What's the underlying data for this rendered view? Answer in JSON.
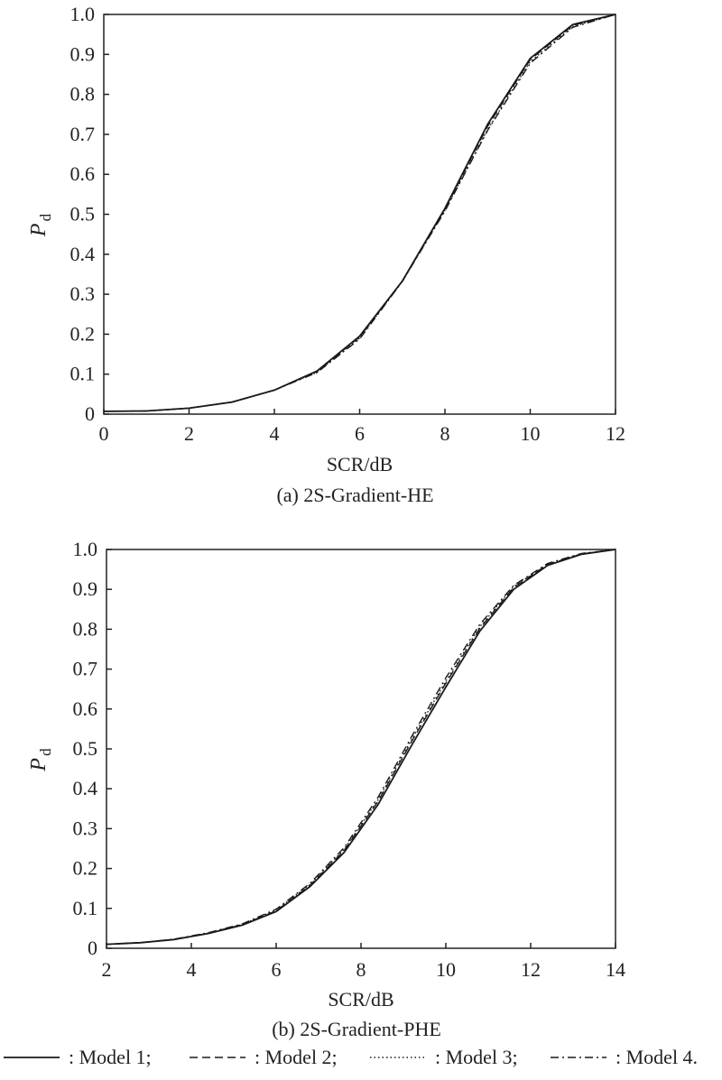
{
  "chart_data": [
    {
      "type": "line",
      "caption": "(a) 2S-Gradient-HE",
      "xlabel": "SCR/dB",
      "ylabel": "P",
      "ylabel_sub": "d",
      "xlim": [
        0,
        12
      ],
      "ylim": [
        0,
        1.0
      ],
      "xticks": [
        "0",
        "2",
        "4",
        "6",
        "8",
        "10",
        "12"
      ],
      "yticks": [
        "0",
        "0.1",
        "0.2",
        "0.3",
        "0.4",
        "0.5",
        "0.6",
        "0.7",
        "0.8",
        "0.9",
        "1.0"
      ],
      "grid": false,
      "series": [
        {
          "name": "Model 1",
          "style": "solid",
          "x": [
            0,
            1,
            2,
            3,
            4,
            5,
            6,
            7,
            8,
            9,
            10,
            11,
            12
          ],
          "y": [
            0.007,
            0.008,
            0.015,
            0.03,
            0.06,
            0.108,
            0.195,
            0.333,
            0.515,
            0.725,
            0.89,
            0.975,
            1.0
          ]
        },
        {
          "name": "Model 2",
          "style": "dashed",
          "x": [
            0,
            1,
            2,
            3,
            4,
            5,
            6,
            7,
            8,
            9,
            10,
            11,
            12
          ],
          "y": [
            0.007,
            0.008,
            0.015,
            0.03,
            0.06,
            0.107,
            0.193,
            0.333,
            0.513,
            0.72,
            0.887,
            0.973,
            1.0
          ]
        },
        {
          "name": "Model 3",
          "style": "dotted",
          "x": [
            0,
            1,
            2,
            3,
            4,
            5,
            6,
            7,
            8,
            9,
            10,
            11,
            12
          ],
          "y": [
            0.007,
            0.008,
            0.015,
            0.03,
            0.06,
            0.105,
            0.19,
            0.332,
            0.51,
            0.712,
            0.882,
            0.97,
            1.0
          ]
        },
        {
          "name": "Model 4",
          "style": "dashdot",
          "x": [
            0,
            1,
            2,
            3,
            4,
            5,
            6,
            7,
            8,
            9,
            10,
            11,
            12
          ],
          "y": [
            0.007,
            0.008,
            0.015,
            0.03,
            0.06,
            0.104,
            0.188,
            0.332,
            0.508,
            0.71,
            0.878,
            0.968,
            1.0
          ]
        }
      ]
    },
    {
      "type": "line",
      "caption": "(b) 2S-Gradient-PHE",
      "xlabel": "SCR/dB",
      "ylabel": "P",
      "ylabel_sub": "d",
      "xlim": [
        2,
        14
      ],
      "ylim": [
        0,
        1.0
      ],
      "xticks": [
        "2",
        "4",
        "6",
        "8",
        "10",
        "12",
        "14"
      ],
      "yticks": [
        "0",
        "0.1",
        "0.2",
        "0.3",
        "0.4",
        "0.5",
        "0.6",
        "0.7",
        "0.8",
        "0.9",
        "1.0"
      ],
      "grid": false,
      "series": [
        {
          "name": "Model 1",
          "style": "solid",
          "x": [
            2,
            2.8,
            3.6,
            4.4,
            5.2,
            6,
            6.8,
            7.6,
            8.4,
            9.2,
            10,
            10.8,
            11.6,
            12.4,
            13.2,
            14
          ],
          "y": [
            0.01,
            0.014,
            0.022,
            0.037,
            0.058,
            0.092,
            0.155,
            0.24,
            0.36,
            0.51,
            0.655,
            0.795,
            0.9,
            0.96,
            0.988,
            1.0
          ]
        },
        {
          "name": "Model 2",
          "style": "dashed",
          "x": [
            2,
            2.8,
            3.6,
            4.4,
            5.2,
            6,
            6.8,
            7.6,
            8.4,
            9.2,
            10,
            10.8,
            11.6,
            12.4,
            13.2,
            14
          ],
          "y": [
            0.01,
            0.014,
            0.022,
            0.038,
            0.059,
            0.094,
            0.158,
            0.245,
            0.368,
            0.52,
            0.665,
            0.802,
            0.905,
            0.962,
            0.989,
            1.0
          ]
        },
        {
          "name": "Model 3",
          "style": "dotted",
          "x": [
            2,
            2.8,
            3.6,
            4.4,
            5.2,
            6,
            6.8,
            7.6,
            8.4,
            9.2,
            10,
            10.8,
            11.6,
            12.4,
            13.2,
            14
          ],
          "y": [
            0.01,
            0.014,
            0.022,
            0.038,
            0.06,
            0.096,
            0.16,
            0.248,
            0.372,
            0.525,
            0.67,
            0.806,
            0.907,
            0.963,
            0.989,
            1.0
          ]
        },
        {
          "name": "Model 4",
          "style": "dashdot",
          "x": [
            2,
            2.8,
            3.6,
            4.4,
            5.2,
            6,
            6.8,
            7.6,
            8.4,
            9.2,
            10,
            10.8,
            11.6,
            12.4,
            13.2,
            14
          ],
          "y": [
            0.01,
            0.014,
            0.023,
            0.039,
            0.061,
            0.098,
            0.163,
            0.252,
            0.378,
            0.532,
            0.678,
            0.812,
            0.91,
            0.965,
            0.99,
            1.0
          ]
        }
      ]
    }
  ],
  "legend": [
    {
      "style": "solid",
      "label": ": Model 1;"
    },
    {
      "style": "dashed",
      "label": ": Model 2;"
    },
    {
      "style": "dotted",
      "label": ": Model 3;"
    },
    {
      "style": "dashdot",
      "label": ": Model 4."
    }
  ],
  "colors": {
    "line": "#1a1a1a",
    "axis": "#222222",
    "background": "#ffffff"
  }
}
